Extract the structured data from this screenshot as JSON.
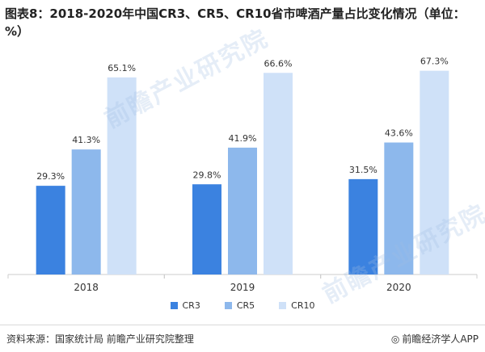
{
  "title": "图表8：2018-2020年中国CR3、CR5、CR10省市啤酒产量占比变化情况（单位：%）",
  "watermark": "前瞻产业研究院",
  "footer": {
    "source": "资料来源：国家统计局 前瞻产业研究院整理",
    "credit_icon": "weibo-icon",
    "credit": "前瞻经济学人APP"
  },
  "colors": {
    "CR3": "#3b82e0",
    "CR5": "#8db8ec",
    "CR10": "#cfe1f8",
    "axis": "#cccccc"
  },
  "chart_data": {
    "type": "bar",
    "categories": [
      "2018",
      "2019",
      "2020"
    ],
    "series": [
      {
        "name": "CR3",
        "values": [
          29.3,
          29.8,
          31.5
        ],
        "labels": [
          "29.3%",
          "29.8%",
          "31.5%"
        ]
      },
      {
        "name": "CR5",
        "values": [
          41.3,
          41.9,
          43.6
        ],
        "labels": [
          "41.3%",
          "41.9%",
          "43.6%"
        ]
      },
      {
        "name": "CR10",
        "values": [
          65.1,
          66.6,
          67.3
        ],
        "labels": [
          "65.1%",
          "66.6%",
          "67.3%"
        ]
      }
    ],
    "ylim": [
      0,
      80
    ],
    "grid": false,
    "legend": "bottom-center"
  }
}
